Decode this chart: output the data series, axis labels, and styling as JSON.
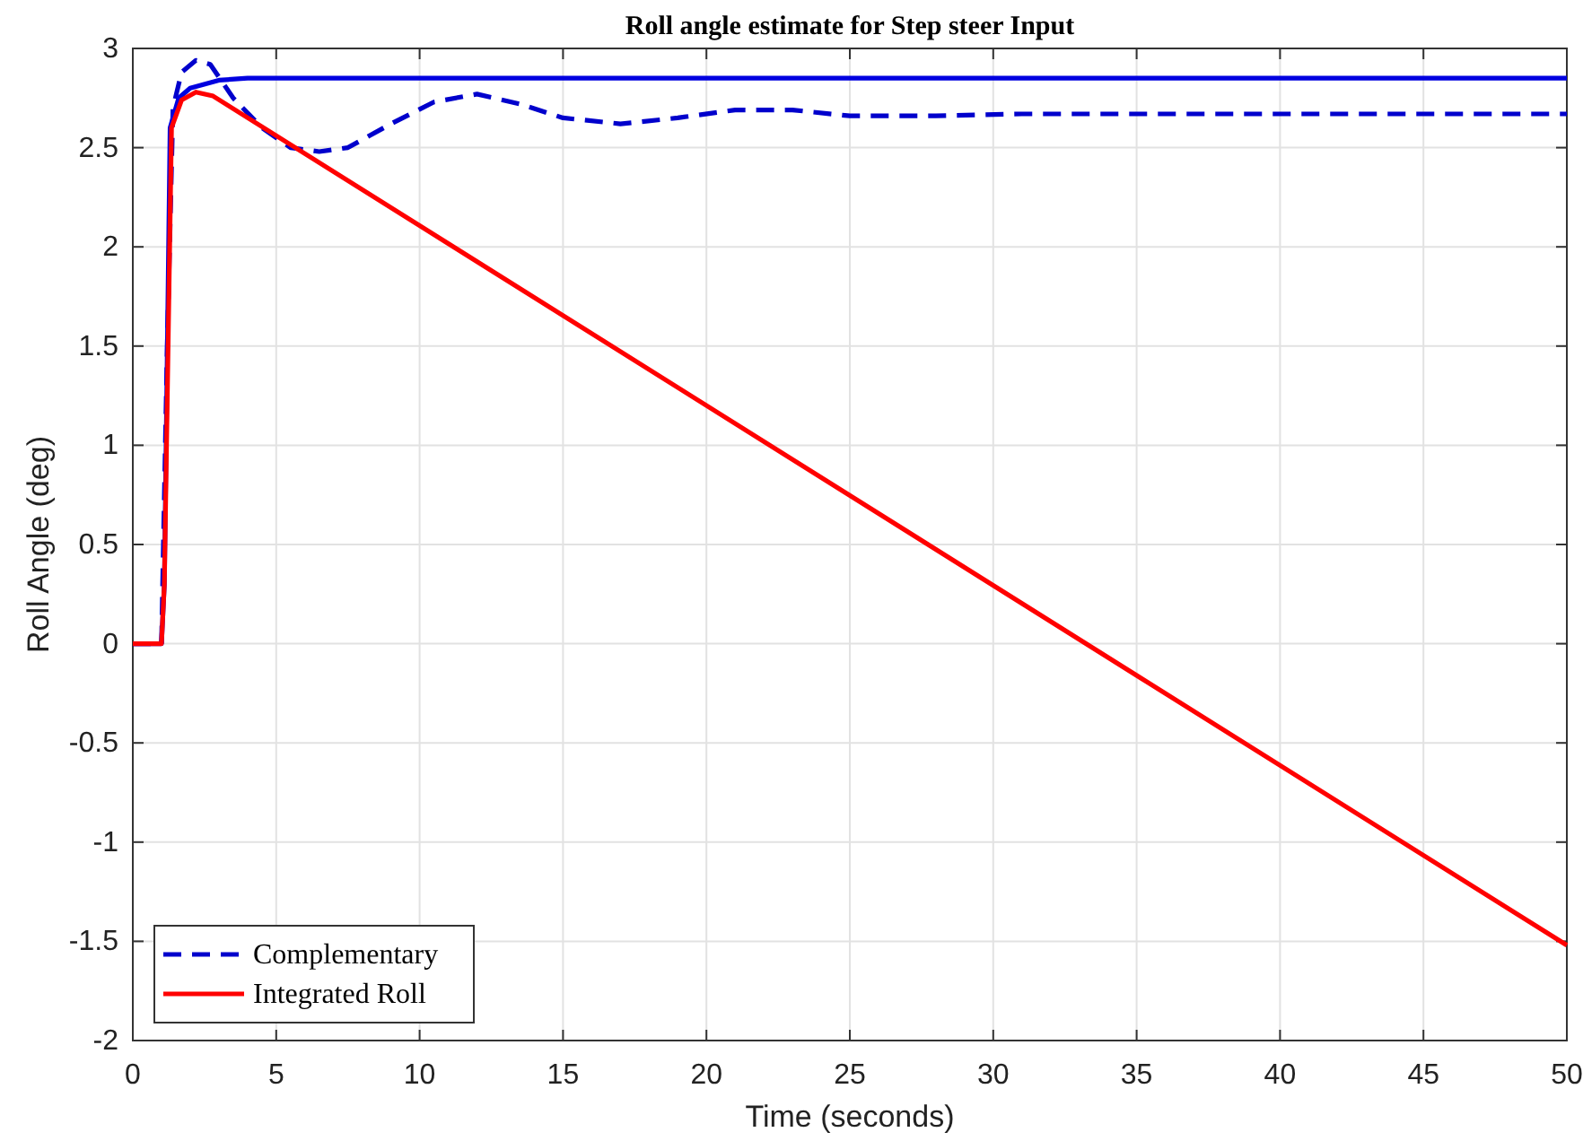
{
  "chart_data": {
    "type": "line",
    "title": "Roll angle estimate for Step steer Input",
    "xlabel": "Time (seconds)",
    "ylabel": "Roll Angle (deg)",
    "xlim": [
      0,
      50
    ],
    "ylim": [
      -2,
      3
    ],
    "xticks": [
      0,
      5,
      10,
      15,
      20,
      25,
      30,
      35,
      40,
      45,
      50
    ],
    "yticks": [
      -2,
      -1.5,
      -1,
      -0.5,
      0,
      0.5,
      1,
      1.5,
      2,
      2.5,
      3
    ],
    "grid": true,
    "legend": "bottom left",
    "series": [
      {
        "name": "Complementary",
        "color": "#0000cc",
        "line_style": "dashed",
        "x": [
          0,
          1,
          1.2,
          1.4,
          1.7,
          2.2,
          2.7,
          3.5,
          4.5,
          5.5,
          6.5,
          7.5,
          9,
          10.5,
          12,
          13.5,
          15,
          17,
          19,
          21,
          23,
          25,
          28,
          31,
          50
        ],
        "values": [
          0,
          0,
          1.5,
          2.7,
          2.88,
          2.94,
          2.92,
          2.75,
          2.6,
          2.5,
          2.48,
          2.5,
          2.62,
          2.73,
          2.77,
          2.72,
          2.65,
          2.62,
          2.65,
          2.69,
          2.69,
          2.66,
          2.66,
          2.67,
          2.67
        ]
      },
      {
        "color": "#0000e0",
        "line_style": "solid",
        "x": [
          0,
          1,
          1.1,
          1.3,
          1.6,
          2,
          3,
          4,
          50
        ],
        "values": [
          0,
          0,
          0.3,
          2.6,
          2.75,
          2.8,
          2.84,
          2.85,
          2.85
        ]
      },
      {
        "name": "Integrated Roll",
        "color": "#ff0000",
        "line_style": "solid",
        "x": [
          0,
          1,
          1.1,
          1.35,
          1.7,
          2.2,
          2.8,
          50
        ],
        "values": [
          0,
          0,
          0.3,
          2.6,
          2.74,
          2.78,
          2.76,
          -1.52
        ]
      }
    ]
  }
}
